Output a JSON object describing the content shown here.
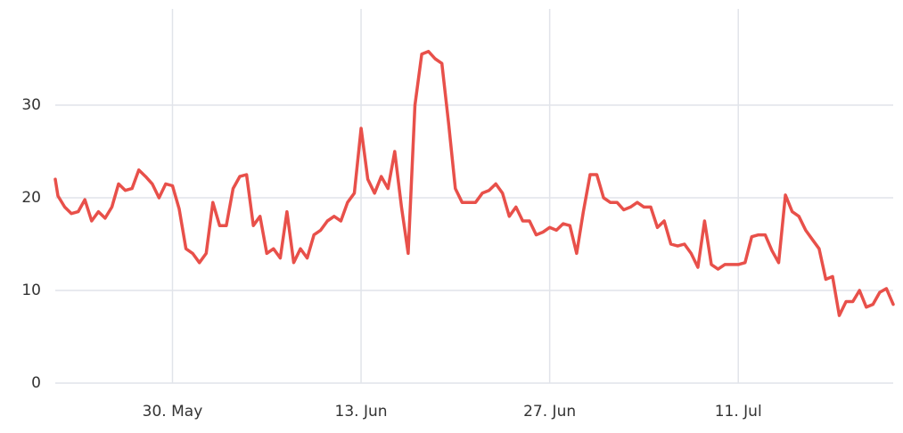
{
  "chart_data": {
    "type": "line",
    "x": [
      -8.7,
      -8.5,
      -8,
      -7.5,
      -7,
      -6.5,
      -6,
      -5.5,
      -5,
      -4.5,
      -4,
      -3.5,
      -3,
      -2.5,
      -2,
      -1.5,
      -1,
      -0.5,
      0,
      0.5,
      1,
      1.5,
      2,
      2.5,
      3,
      3.5,
      4,
      4.5,
      5,
      5.5,
      6,
      6.5,
      7,
      7.5,
      8,
      8.5,
      9,
      9.5,
      10,
      10.5,
      11,
      11.5,
      12,
      12.5,
      13,
      13.5,
      14,
      14.5,
      15,
      15.5,
      16,
      16.5,
      17,
      17.5,
      18,
      18.5,
      19,
      19.5,
      20,
      20.5,
      21,
      21.5,
      22,
      22.5,
      23,
      23.5,
      24,
      24.5,
      25,
      25.5,
      26,
      26.5,
      27,
      27.5,
      28,
      28.5,
      29,
      29.5,
      30,
      30.5,
      31,
      31.5,
      32,
      32.5,
      33,
      33.5,
      34,
      34.5,
      35,
      35.5,
      36,
      36.5,
      37,
      37.5,
      38,
      38.5,
      39,
      39.5,
      40,
      40.5,
      41,
      41.5,
      42,
      42.5,
      43,
      43.5,
      44,
      44.5,
      45,
      45.5,
      46,
      46.5,
      47,
      47.5,
      48,
      48.5,
      49,
      49.5,
      50,
      50.5,
      51,
      51.5,
      52,
      52.5,
      53,
      53.5
    ],
    "series": [
      {
        "color": "#e8504a",
        "values": [
          22,
          20.2,
          19,
          18.3,
          18.5,
          19.8,
          17.5,
          18.5,
          17.8,
          19,
          21.5,
          20.8,
          21,
          23,
          22.3,
          21.5,
          20,
          21.5,
          21.3,
          18.8,
          14.5,
          14,
          13,
          14,
          19.5,
          17,
          17,
          21,
          22.3,
          22.5,
          17,
          18,
          14,
          14.5,
          13.5,
          18.5,
          13,
          14.5,
          13.5,
          16,
          16.5,
          17.5,
          18,
          17.5,
          19.5,
          20.5,
          27.5,
          22,
          20.5,
          22.3,
          21,
          25,
          19,
          14,
          30,
          35.5,
          35.8,
          35,
          34.5,
          28,
          21,
          19.5,
          19.5,
          19.5,
          20.5,
          20.8,
          21.5,
          20.5,
          18,
          19,
          17.5,
          17.5,
          16,
          16.3,
          16.8,
          16.5,
          17.2,
          17,
          14,
          18.5,
          22.5,
          22.5,
          20,
          19.5,
          19.5,
          18.7,
          19,
          19.5,
          19,
          19,
          16.8,
          17.5,
          15,
          14.8,
          15,
          14,
          12.5,
          17.5,
          12.8,
          12.3,
          12.8,
          12.8,
          12.8,
          13,
          15.8,
          16,
          16,
          14.3,
          13,
          20.3,
          18.5,
          18,
          16.5,
          15.5,
          14.5,
          11.2,
          11.5,
          7.3,
          8.8,
          8.8,
          10,
          8.2,
          8.5,
          9.8,
          10.2,
          8.5
        ]
      }
    ],
    "xlim": [
      -8.7,
      53.5
    ],
    "xticks": [
      {
        "value": 0,
        "label": "30. May"
      },
      {
        "value": 14,
        "label": "13. Jun"
      },
      {
        "value": 28,
        "label": "27. Jun"
      },
      {
        "value": 42,
        "label": "11. Jul"
      }
    ],
    "ylim": [
      0,
      40
    ],
    "yticks": [
      0,
      10,
      20,
      30
    ],
    "grid": true
  }
}
